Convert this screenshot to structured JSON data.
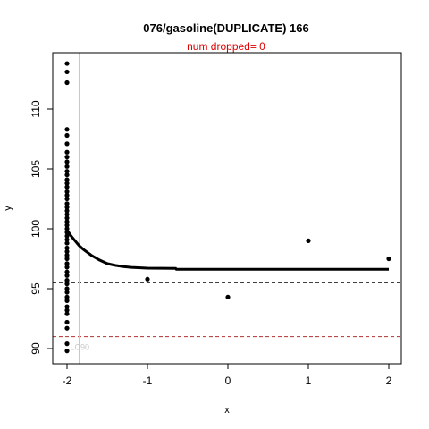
{
  "chart_data": {
    "type": "scatter",
    "title": "076/gasoline(DUPLICATE) 166",
    "subtitle": "num dropped= 0",
    "subtitle_color": "#e00000",
    "xlabel": "x",
    "ylabel": "y",
    "xlim": [
      -2.05,
      2.15
    ],
    "ylim": [
      89.3,
      114.5
    ],
    "x_ticks": [
      -2,
      -1,
      0,
      1,
      2
    ],
    "y_ticks": [
      90,
      95,
      100,
      105,
      110
    ],
    "points": [
      {
        "x": -2,
        "y": 113.8
      },
      {
        "x": -2,
        "y": 113.1
      },
      {
        "x": -2,
        "y": 112.2
      },
      {
        "x": -2,
        "y": 108.3
      },
      {
        "x": -2,
        "y": 107.8
      },
      {
        "x": -2,
        "y": 107.1
      },
      {
        "x": -2,
        "y": 106.4
      },
      {
        "x": -2,
        "y": 106.0
      },
      {
        "x": -2,
        "y": 105.6
      },
      {
        "x": -2,
        "y": 105.2
      },
      {
        "x": -2,
        "y": 104.8
      },
      {
        "x": -2,
        "y": 104.5
      },
      {
        "x": -2,
        "y": 104.1
      },
      {
        "x": -2,
        "y": 103.8
      },
      {
        "x": -2,
        "y": 103.5
      },
      {
        "x": -2,
        "y": 103.1
      },
      {
        "x": -2,
        "y": 102.8
      },
      {
        "x": -2,
        "y": 102.5
      },
      {
        "x": -2,
        "y": 102.1
      },
      {
        "x": -2,
        "y": 101.8
      },
      {
        "x": -2,
        "y": 101.5
      },
      {
        "x": -2,
        "y": 101.2
      },
      {
        "x": -2,
        "y": 100.9
      },
      {
        "x": -2,
        "y": 100.6
      },
      {
        "x": -2,
        "y": 100.3
      },
      {
        "x": -2,
        "y": 100.0
      },
      {
        "x": -2,
        "y": 99.7
      },
      {
        "x": -2,
        "y": 99.4
      },
      {
        "x": -2,
        "y": 99.1
      },
      {
        "x": -2,
        "y": 98.8
      },
      {
        "x": -2,
        "y": 98.4
      },
      {
        "x": -2,
        "y": 98.1
      },
      {
        "x": -2,
        "y": 97.8
      },
      {
        "x": -2,
        "y": 97.5
      },
      {
        "x": -2,
        "y": 97.1
      },
      {
        "x": -2,
        "y": 96.8
      },
      {
        "x": -2,
        "y": 96.4
      },
      {
        "x": -2,
        "y": 96.1
      },
      {
        "x": -2,
        "y": 95.7
      },
      {
        "x": -2,
        "y": 95.4
      },
      {
        "x": -2,
        "y": 95.0
      },
      {
        "x": -2,
        "y": 94.7
      },
      {
        "x": -2,
        "y": 94.3
      },
      {
        "x": -2,
        "y": 94.0
      },
      {
        "x": -2,
        "y": 93.5
      },
      {
        "x": -2,
        "y": 93.2
      },
      {
        "x": -2,
        "y": 92.9
      },
      {
        "x": -2,
        "y": 92.2
      },
      {
        "x": -2,
        "y": 91.7
      },
      {
        "x": -2,
        "y": 90.4
      },
      {
        "x": -2,
        "y": 89.8
      },
      {
        "x": -1,
        "y": 95.8
      },
      {
        "x": 0,
        "y": 94.3
      },
      {
        "x": 1,
        "y": 99.0
      },
      {
        "x": 2,
        "y": 97.5
      }
    ],
    "fit_curve": [
      {
        "x": -2.0,
        "y": 99.9
      },
      {
        "x": -1.95,
        "y": 99.4
      },
      {
        "x": -1.9,
        "y": 99.0
      },
      {
        "x": -1.85,
        "y": 98.6
      },
      {
        "x": -1.8,
        "y": 98.3
      },
      {
        "x": -1.7,
        "y": 97.8
      },
      {
        "x": -1.6,
        "y": 97.4
      },
      {
        "x": -1.5,
        "y": 97.1
      },
      {
        "x": -1.4,
        "y": 96.95
      },
      {
        "x": -1.3,
        "y": 96.85
      },
      {
        "x": -1.2,
        "y": 96.78
      },
      {
        "x": -1.0,
        "y": 96.72
      },
      {
        "x": -0.65,
        "y": 96.7
      },
      {
        "x": -0.64,
        "y": 96.62
      },
      {
        "x": 0,
        "y": 96.62
      },
      {
        "x": 1,
        "y": 96.62
      },
      {
        "x": 2,
        "y": 96.62
      }
    ],
    "hlines": [
      {
        "y": 95.5,
        "color": "#000000"
      },
      {
        "y": 91.0,
        "color": "#b03030"
      }
    ],
    "vline": {
      "x": -1.85,
      "color": "#c8c8c8",
      "label": "LC90"
    }
  }
}
